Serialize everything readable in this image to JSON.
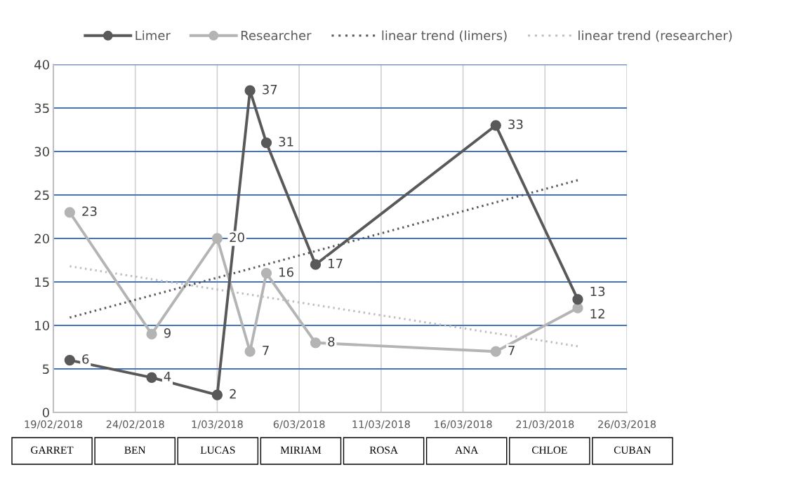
{
  "chart_data": {
    "type": "line",
    "x": [
      "2018-02-20",
      "2018-02-25",
      "2018-03-01",
      "2018-03-03",
      "2018-03-04",
      "2018-03-07",
      "2018-03-18",
      "2018-03-23"
    ],
    "series": [
      {
        "name": "Limer",
        "color": "#595959",
        "marker": "circle",
        "line_style": "solid",
        "values": [
          6,
          4,
          2,
          37,
          31,
          17,
          33,
          13
        ],
        "value_labels": [
          "6",
          "4",
          "2",
          "37",
          "31",
          "17",
          "33",
          "13"
        ]
      },
      {
        "name": "Researcher",
        "color": "#b4b4b4",
        "marker": "circle",
        "line_style": "solid",
        "values": [
          23,
          9,
          20,
          7,
          16,
          8,
          7,
          12
        ],
        "value_labels": [
          "23",
          "9",
          "20",
          "7",
          "16",
          "8",
          "7",
          "12"
        ]
      },
      {
        "name": "linear trend (limers)",
        "type": "line",
        "color": "#595959",
        "marker": "none",
        "line_style": "dotted",
        "x": [
          "2018-02-20",
          "2018-03-23"
        ],
        "values": [
          10.9,
          26.7
        ]
      },
      {
        "name": "linear trend (researcher)",
        "type": "line",
        "color": "#bfbfbf",
        "marker": "none",
        "line_style": "dotted",
        "x": [
          "2018-02-20",
          "2018-03-23"
        ],
        "values": [
          16.8,
          7.6
        ]
      }
    ],
    "xlim": [
      "2018-02-19",
      "2018-03-26"
    ],
    "xticks": [
      {
        "value": "2018-02-19",
        "label": "19/02/2018"
      },
      {
        "value": "2018-02-24",
        "label": "24/02/2018"
      },
      {
        "value": "2018-03-01",
        "label": "1/03/2018"
      },
      {
        "value": "2018-03-06",
        "label": "6/03/2018"
      },
      {
        "value": "2018-03-11",
        "label": "11/03/2018"
      },
      {
        "value": "2018-03-16",
        "label": "16/03/2018"
      },
      {
        "value": "2018-03-21",
        "label": "21/03/2018"
      },
      {
        "value": "2018-03-26",
        "label": "26/03/2018"
      }
    ],
    "ylim": [
      0,
      40
    ],
    "yticks": [
      0,
      5,
      10,
      15,
      20,
      25,
      30,
      35,
      40
    ],
    "grid": true,
    "legend": "top",
    "annotations": [
      "GARRET",
      "BEN",
      "LUCAS",
      "MIRIAM",
      "ROSA",
      "ANA",
      "CHLOE",
      "CUBAN"
    ]
  }
}
